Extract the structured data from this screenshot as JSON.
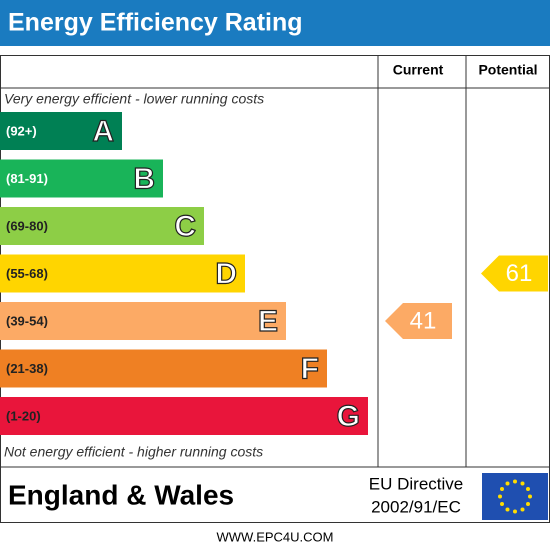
{
  "chart_data": {
    "type": "epc",
    "title": "Energy Efficiency Rating",
    "columns": [
      "Current",
      "Potential"
    ],
    "top_note": "Very energy efficient - lower running costs",
    "bottom_note": "Not energy efficient - higher running costs",
    "bands": [
      {
        "range": "(92+)",
        "letter": "A",
        "color": "#008054"
      },
      {
        "range": "(81-91)",
        "letter": "B",
        "color": "#19b459"
      },
      {
        "range": "(69-80)",
        "letter": "C",
        "color": "#8dce46"
      },
      {
        "range": "(55-68)",
        "letter": "D",
        "color": "#ffd500"
      },
      {
        "range": "(39-54)",
        "letter": "E",
        "color": "#fcaa65"
      },
      {
        "range": "(21-38)",
        "letter": "F",
        "color": "#ef8023"
      },
      {
        "range": "(1-20)",
        "letter": "G",
        "color": "#e9153b"
      }
    ],
    "current": 41,
    "potential": 61,
    "region": "England & Wales",
    "directive": [
      "EU Directive",
      "2002/91/EC"
    ],
    "website": "WWW.EPC4U.COM"
  }
}
